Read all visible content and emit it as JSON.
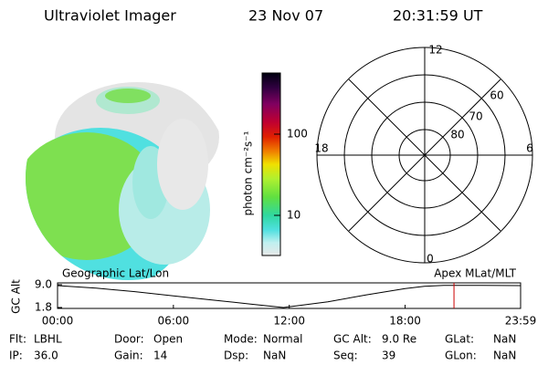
{
  "header": {
    "title": "Ultraviolet Imager",
    "date": "23 Nov 07",
    "time": "20:31:59 UT"
  },
  "colorbar": {
    "label": "photon cm⁻²s⁻¹",
    "ticks": [
      "100",
      "10"
    ]
  },
  "polar": {
    "mlt_labels": [
      "12",
      "18",
      "6",
      "0"
    ],
    "lat_labels": [
      "60",
      "70",
      "80"
    ]
  },
  "orbit_plot": {
    "left_title": "Geographic Lat/Lon",
    "right_title": "Apex MLat/MLT",
    "y_label": "GC Alt",
    "ylim": [
      1.8,
      9
    ],
    "yticks": [
      {
        "value": 9,
        "label": "9.0"
      },
      1.8
    ],
    "xlim": [
      0,
      23.98
    ],
    "xticks": [
      {
        "value": 0,
        "label": "00:00"
      },
      {
        "value": 6,
        "label": "06:00"
      },
      {
        "value": 12,
        "label": "12:00"
      },
      {
        "value": 18,
        "label": "18:00"
      },
      {
        "value": 23.98,
        "label": "23:59"
      }
    ],
    "x": [
      0,
      2,
      4,
      6,
      8,
      10,
      11.7,
      14,
      16,
      18,
      19,
      20,
      22,
      23.98
    ],
    "values": [
      8.7,
      7.9,
      6.8,
      5.5,
      4.2,
      2.9,
      1.8,
      3.6,
      5.8,
      7.8,
      8.5,
      8.8,
      8.8,
      8.7
    ],
    "current_time": 20.53,
    "color": "#000000",
    "marker_color": "#cc0000"
  },
  "fields": [
    [
      {
        "label": "Flt:",
        "value": "LBHL"
      },
      {
        "label": "Door:",
        "value": "Open"
      },
      {
        "label": "Mode:",
        "value": "Normal"
      },
      {
        "label": "GC Alt:",
        "value": "9.0 Re"
      },
      {
        "label": "GLat:",
        "value": "NaN"
      }
    ],
    [
      {
        "label": "IP:",
        "value": "36.0"
      },
      {
        "label": "Gain:",
        "value": "14"
      },
      {
        "label": "Dsp:",
        "value": "NaN"
      },
      {
        "label": "Seq:",
        "value": "39"
      },
      {
        "label": "GLon:",
        "value": "NaN"
      }
    ]
  ]
}
